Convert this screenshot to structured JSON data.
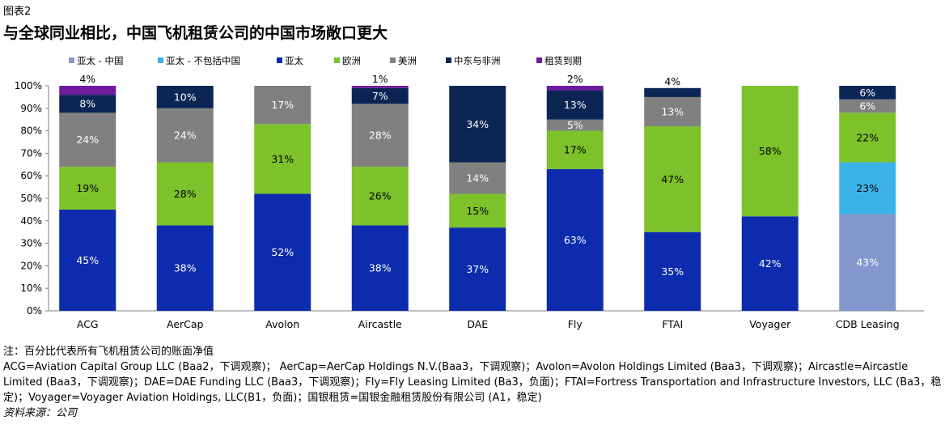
{
  "figure_label": "图表2",
  "figure_title": "与全球同业相比，中国飞机租赁公司的中国市场敞口更大",
  "chart_data": {
    "type": "bar",
    "stacked": true,
    "ylim": [
      0,
      100
    ],
    "yticks": [
      "0%",
      "10%",
      "20%",
      "30%",
      "40%",
      "50%",
      "60%",
      "70%",
      "80%",
      "90%",
      "100%"
    ],
    "categories": [
      "ACG",
      "AerCap",
      "Avolon",
      "Aircastle",
      "DAE",
      "Fly",
      "FTAI",
      "Voyager",
      "CDB Leasing"
    ],
    "legend_position": "top",
    "series": [
      {
        "name": "亚太 - 中国",
        "color": "#8497CE",
        "values": [
          0,
          0,
          0,
          0,
          0,
          0,
          0,
          0,
          43
        ]
      },
      {
        "name": "亚太 - 不包括中国",
        "color": "#3BB3E9",
        "values": [
          0,
          0,
          0,
          0,
          0,
          0,
          0,
          0,
          23
        ]
      },
      {
        "name": "亚太",
        "color": "#0C2CAD",
        "values": [
          45,
          38,
          52,
          38,
          37,
          63,
          35,
          42,
          0
        ]
      },
      {
        "name": "欧洲",
        "color": "#7DC12B",
        "values": [
          19,
          28,
          31,
          26,
          15,
          17,
          47,
          58,
          22
        ]
      },
      {
        "name": "美洲",
        "color": "#808080",
        "values": [
          24,
          24,
          17,
          28,
          14,
          5,
          13,
          0,
          6
        ]
      },
      {
        "name": "中东与非洲",
        "color": "#0B2654",
        "values": [
          8,
          10,
          0,
          7,
          34,
          13,
          4,
          0,
          6
        ]
      },
      {
        "name": "租赁到期",
        "color": "#6E1B9E",
        "values": [
          4,
          0,
          0,
          1,
          0,
          2,
          0,
          0,
          0
        ]
      }
    ],
    "data_labels": [
      [
        "",
        "",
        "45%",
        "19%",
        "24%",
        "8%",
        "4%"
      ],
      [
        "",
        "",
        "38%",
        "28%",
        "24%",
        "10%",
        ""
      ],
      [
        "",
        "",
        "52%",
        "31%",
        "17%",
        "",
        ""
      ],
      [
        "",
        "",
        "38%",
        "26%",
        "28%",
        "7%",
        "1%"
      ],
      [
        "",
        "",
        "37%",
        "15%",
        "14%",
        "34%",
        ""
      ],
      [
        "",
        "",
        "63%",
        "17%",
        "5%",
        "13%",
        "2%"
      ],
      [
        "",
        "",
        "35%",
        "47%",
        "13%",
        "4%",
        ""
      ],
      [
        "",
        "",
        "42%",
        "58%",
        "",
        "",
        ""
      ],
      [
        "43%",
        "23%",
        "",
        "22%",
        "6%",
        "6%",
        ""
      ]
    ],
    "label_text_colors": [
      "#ffffff",
      "#000000",
      "#ffffff",
      "#000000",
      "#ffffff",
      "#ffffff",
      "#000000"
    ]
  },
  "note_lines": [
    "注：百分比代表所有飞机租赁公司的账面净值",
    "ACG=Aviation Capital Group LLC (Baa2，下调观察)； AerCap=AerCap Holdings N.V.(Baa3，下调观察)；Avolon=Avolon Holdings Limited (Baa3，下调观察)；Aircastle=Aircastle Limited (Baa3，下调观察)；DAE=DAE Funding LLC (Baa3，下调观察)；Fly=Fly Leasing Limited (Ba3，负面)；FTAI=Fortress Transportation and Infrastructure Investors, LLC (Ba3，稳定)；Voyager=Voyager Aviation Holdings, LLC(B1，负面)；国银租赁=国银金融租赁股份有限公司 (A1，稳定)"
  ],
  "source": "资料来源：公司"
}
